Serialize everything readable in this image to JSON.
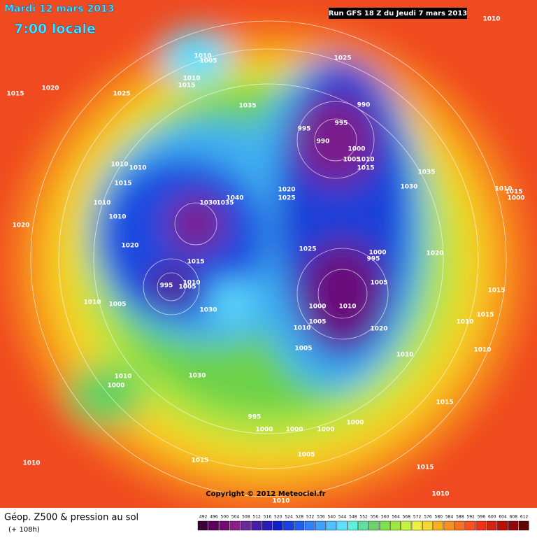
{
  "map": {
    "title": "Mardi 12 mars 2013",
    "time": "7:00 locale",
    "run": "Run GFS 18 Z du Jeudi 7 mars 2013",
    "copyright": "Copyright © 2012 Meteociel.fr",
    "isobar_labels": [
      "1010",
      "1010",
      "1005",
      "1025",
      "1010",
      "1015",
      "1015",
      "1020",
      "1025",
      "1035",
      "990",
      "995",
      "995",
      "990",
      "1000",
      "1005",
      "1010",
      "1015",
      "1010",
      "1010",
      "1015",
      "1035",
      "1030",
      "1020",
      "1025",
      "1040",
      "1030",
      "1035",
      "1010",
      "1010",
      "1015",
      "1000",
      "1010",
      "1020",
      "1020",
      "1025",
      "1000",
      "995",
      "1020",
      "1015",
      "995",
      "1005",
      "1010",
      "1005",
      "1010",
      "1005",
      "1000",
      "1010",
      "1030",
      "1015",
      "1015",
      "1010",
      "1005",
      "1010",
      "1020",
      "1010",
      "1005",
      "1010",
      "1030",
      "1010",
      "1000",
      "1015",
      "995",
      "1000",
      "1000",
      "1000",
      "1000",
      "1005",
      "1010",
      "1015",
      "1015",
      "1010",
      "1010"
    ],
    "legend": {
      "title": "Géop. Z500 & pression au sol",
      "lead": "(+ 108h)",
      "levels": [
        492,
        496,
        500,
        504,
        508,
        512,
        516,
        520,
        524,
        528,
        532,
        536,
        540,
        544,
        548,
        552,
        556,
        560,
        564,
        568,
        572,
        576,
        580,
        584,
        588,
        592,
        596,
        600,
        604,
        608,
        612
      ],
      "colors": [
        "#3c003c",
        "#5a005a",
        "#730a73",
        "#8c1e8c",
        "#6a2a9a",
        "#4a1aa8",
        "#2a1ab8",
        "#1020c8",
        "#1a40e0",
        "#2060f0",
        "#3080f8",
        "#40a0ff",
        "#50c0ff",
        "#60e0ff",
        "#60f0e0",
        "#60e0a0",
        "#70d070",
        "#80e050",
        "#a0e840",
        "#c8f040",
        "#f0f040",
        "#f8d830",
        "#f8b020",
        "#f89020",
        "#f87020",
        "#f85020",
        "#f03018",
        "#d82010",
        "#b81008",
        "#900808",
        "#600404"
      ]
    }
  }
}
